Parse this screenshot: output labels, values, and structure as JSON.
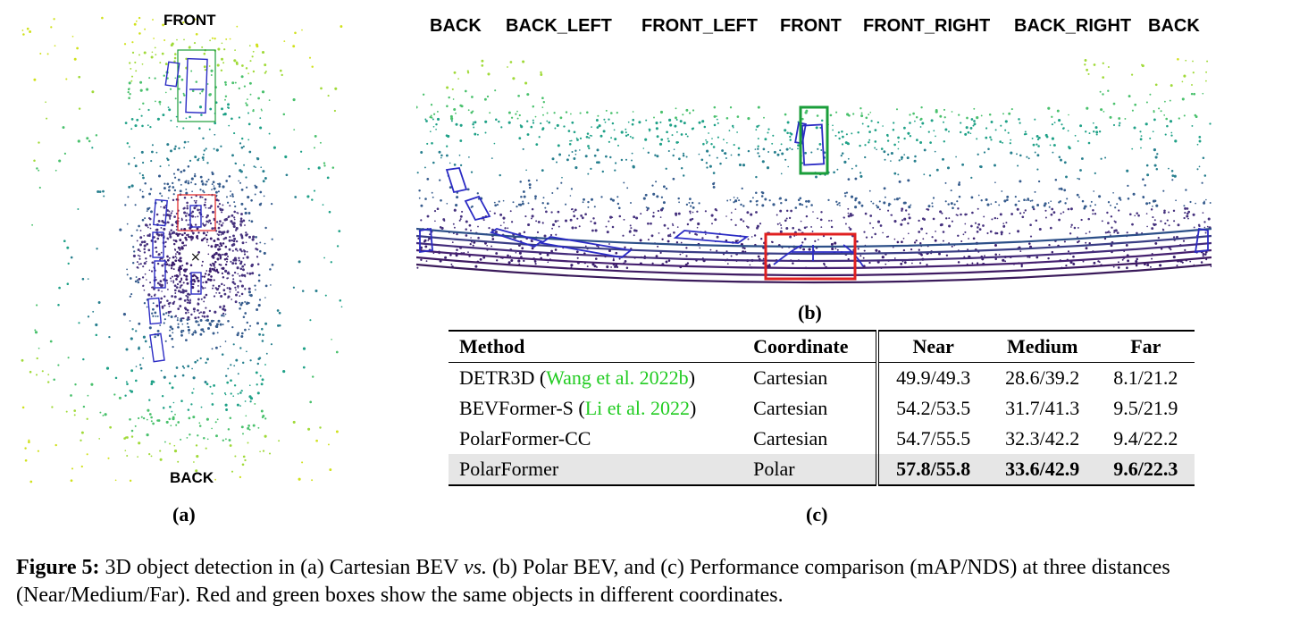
{
  "panel_a": {
    "top_label": "FRONT",
    "bottom_label": "BACK",
    "center_mark": "×",
    "sublabel": "(a)"
  },
  "panel_b": {
    "directions": [
      "BACK",
      "BACK_LEFT",
      "FRONT_LEFT",
      "FRONT",
      "FRONT_RIGHT",
      "BACK_RIGHT",
      "BACK"
    ],
    "sublabel": "(b)"
  },
  "table": {
    "headers": [
      "Method",
      "Coordinate",
      "Near",
      "Medium",
      "Far"
    ],
    "rows": [
      {
        "method": "DETR3D",
        "cite": "Wang et al. 2022b",
        "coordinate": "Cartesian",
        "near": "49.9/49.3",
        "medium": "28.6/39.2",
        "far": "8.1/21.2"
      },
      {
        "method": "BEVFormer-S",
        "cite": "Li et al. 2022",
        "coordinate": "Cartesian",
        "near": "54.2/53.5",
        "medium": "31.7/41.3",
        "far": "9.5/21.9"
      },
      {
        "method": "PolarFormer-CC",
        "cite": "",
        "coordinate": "Cartesian",
        "near": "54.7/55.5",
        "medium": "32.3/42.2",
        "far": "9.4/22.2"
      },
      {
        "method": "PolarFormer",
        "cite": "",
        "coordinate": "Polar",
        "near": "57.8/55.8",
        "medium": "33.6/42.9",
        "far": "9.6/22.3"
      }
    ],
    "sublabel": "(c)"
  },
  "caption": {
    "label": "Figure 5:",
    "text_1": " 3D object detection in (a) Cartesian BEV ",
    "vs": "vs.",
    "text_2": " (b) Polar BEV, and (c) Performance comparison (mAP/NDS) at three distances (Near/Medium/Far). Red and green boxes show the same objects in different coordinates."
  },
  "colors": {
    "citation": "#22cc22",
    "green_box": "#1a9e3a",
    "red_box": "#e02020",
    "detection_box": "#2b2bc4",
    "point_dark": "#3b1f6e",
    "point_mid": "#2c7c8c",
    "point_light": "#b5d83a"
  }
}
